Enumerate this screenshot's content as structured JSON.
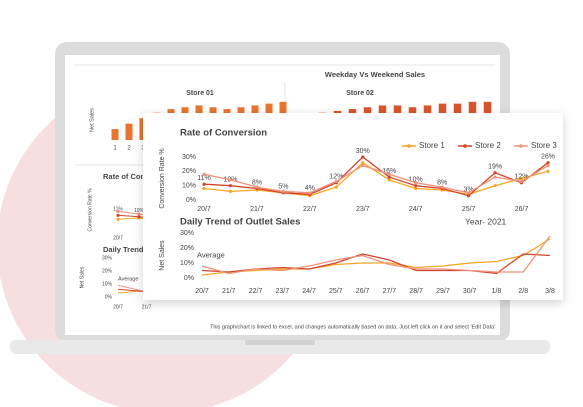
{
  "background": {
    "title": "Weekday Vs Weekend  Sales",
    "footer": "This graph/chart is linked to excel, and changes automatically based on data. Just left click on it and select 'Edit Data'"
  },
  "chart_data": [
    {
      "type": "bar",
      "title": "Store 01",
      "y_label": "Net Sales",
      "categories": [
        "1",
        "2",
        "3",
        null,
        null,
        null,
        null,
        null,
        null,
        null,
        null,
        null,
        null
      ],
      "values": [
        6,
        9,
        12,
        15,
        17,
        18,
        19,
        18,
        17,
        18,
        19,
        20,
        21
      ],
      "color": "#e8742e",
      "ylim": [
        0,
        22
      ]
    },
    {
      "type": "bar",
      "title": "Store 02",
      "categories": [
        null,
        null,
        null,
        null,
        null,
        null,
        null,
        null,
        null,
        null,
        null,
        null,
        null
      ],
      "values": [
        14,
        15,
        16,
        17,
        18,
        19,
        19,
        18,
        19,
        20,
        20,
        21,
        21
      ],
      "color": "#d9532b",
      "ylim": [
        0,
        22
      ]
    },
    {
      "type": "line",
      "title": "Rate of Conversion",
      "y_label": "Conversion Rate %",
      "categories": [
        "20/7",
        null,
        null
      ],
      "series": [
        {
          "color": "#f6a623",
          "values": [
            8,
            9,
            7
          ]
        },
        {
          "color": "#d2452a",
          "values": [
            11,
            10,
            8
          ],
          "value_labels": [
            "11%",
            "10%",
            null
          ]
        },
        {
          "color": "#f0917a",
          "values": [
            14,
            12,
            9
          ]
        }
      ],
      "ylim": [
        0,
        30
      ]
    },
    {
      "type": "line",
      "title": "Daily Trend of Outlet Sales",
      "y_label": "Net Sales",
      "annotation": "Average",
      "categories": [
        "20/7",
        "21/7",
        null
      ],
      "series": [
        {
          "color": "#f6a623",
          "values": [
            3,
            5,
            6
          ]
        },
        {
          "color": "#d2452a",
          "values": [
            6,
            4,
            5
          ]
        },
        {
          "color": "#f0917a",
          "values": [
            9,
            4,
            6
          ]
        }
      ],
      "ylim": [
        0,
        30
      ],
      "yticks": [
        {
          "value": 0,
          "label": "0%"
        },
        {
          "value": 10,
          "label": "10%"
        },
        {
          "value": 20,
          "label": "20%"
        },
        {
          "value": 30,
          "label": "30%"
        }
      ]
    },
    {
      "type": "line",
      "title": "Rate of Conversion",
      "y_label": "Conversion Rate %",
      "legend": "top-right",
      "categories": [
        "20/7",
        null,
        "21/7",
        null,
        "22/7",
        null,
        "23/7",
        null,
        "24/7",
        null,
        "25/7",
        null,
        "26/7",
        null
      ],
      "series": [
        {
          "name": "Store 1",
          "color": "#f6a623",
          "values": [
            8,
            6,
            7,
            5,
            3,
            9,
            26,
            14,
            8,
            7,
            4,
            10,
            15,
            20
          ]
        },
        {
          "name": "Store 2",
          "color": "#d2452a",
          "values": [
            11,
            10,
            8,
            5,
            4,
            12,
            30,
            16,
            10,
            8,
            3,
            19,
            12,
            26
          ],
          "value_labels": [
            "11%",
            "10%",
            "8%",
            "5%",
            "4%",
            "12%",
            "30%",
            "16%",
            "10%",
            "8%",
            "3%",
            "19%",
            "12%",
            "26%"
          ]
        },
        {
          "name": "Store 3",
          "color": "#f0917a",
          "values": [
            18,
            14,
            9,
            6,
            5,
            13,
            24,
            18,
            12,
            9,
            5,
            16,
            13,
            24
          ]
        }
      ],
      "ylim": [
        0,
        30
      ],
      "yticks": [
        {
          "value": 0,
          "label": "0%"
        },
        {
          "value": 10,
          "label": "10%"
        },
        {
          "value": 20,
          "label": "20%"
        },
        {
          "value": 30,
          "label": "30%"
        }
      ]
    },
    {
      "type": "line",
      "title": "Daily Trend of Outlet Sales",
      "subtitle": "Year- 2021",
      "y_label": "Net Sales",
      "annotation": "Average",
      "categories": [
        "20/7",
        "21/7",
        "22/7",
        "23/7",
        "24/7",
        "25/7",
        "26/7",
        "27/7",
        "28/7",
        "29/7",
        "30/7",
        "1/8",
        "2/8",
        "3/8"
      ],
      "series": [
        {
          "color": "#f6a623",
          "values": [
            2,
            4,
            5,
            6,
            6,
            9,
            10,
            10,
            7,
            8,
            10,
            11,
            15,
            26
          ]
        },
        {
          "color": "#d2452a",
          "values": [
            5,
            4,
            6,
            7,
            6,
            10,
            16,
            12,
            5,
            5,
            5,
            3,
            16,
            15
          ]
        },
        {
          "color": "#f0917a",
          "values": [
            8,
            3,
            6,
            5,
            8,
            12,
            15,
            9,
            6,
            6,
            5,
            4,
            4,
            28
          ]
        }
      ],
      "ylim": [
        0,
        30
      ],
      "yticks": [
        {
          "value": 0,
          "label": "0%"
        },
        {
          "value": 10,
          "label": "10%"
        },
        {
          "value": 20,
          "label": "20%"
        },
        {
          "value": 30,
          "label": "30%"
        }
      ]
    }
  ]
}
